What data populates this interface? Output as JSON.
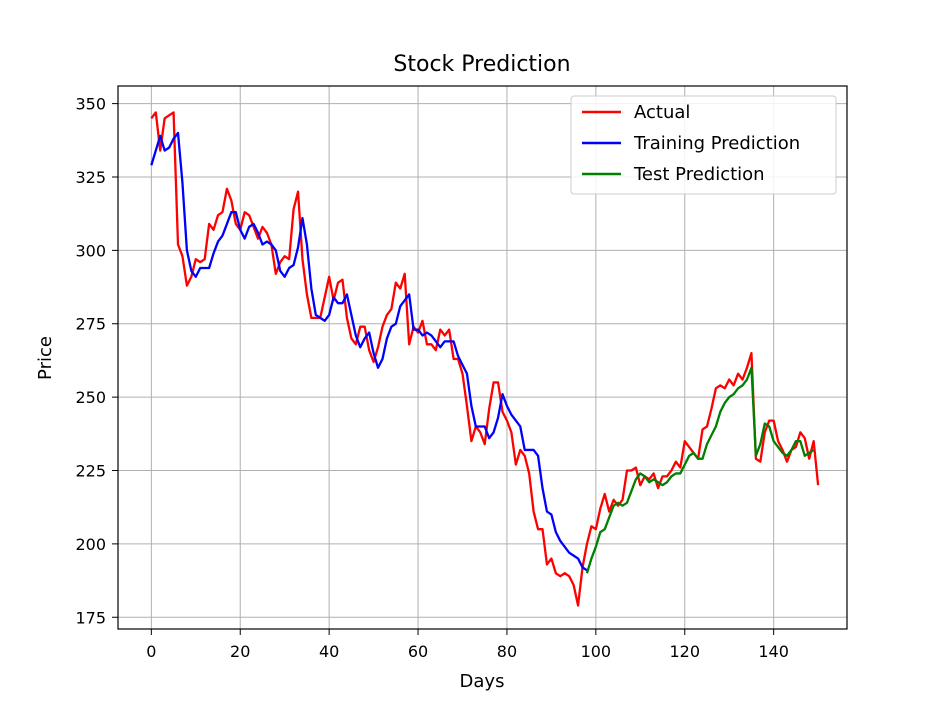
{
  "chart_data": {
    "type": "line",
    "title": "Stock Prediction",
    "xlabel": "Days",
    "ylabel": "Price",
    "xlim": [
      -7.5,
      156.5
    ],
    "ylim": [
      171,
      356
    ],
    "xticks": [
      0,
      20,
      40,
      60,
      80,
      100,
      120,
      140
    ],
    "yticks": [
      175,
      200,
      225,
      250,
      275,
      300,
      325,
      350
    ],
    "grid": true,
    "legend_position": "top-right",
    "series": [
      {
        "name": "Actual",
        "color": "#ff0000",
        "x_start": 0,
        "values": [
          345,
          347,
          334,
          345,
          346,
          347,
          302,
          298,
          288,
          291,
          297,
          296,
          297,
          309,
          307,
          312,
          313,
          321,
          317,
          309,
          307,
          313,
          312,
          308,
          304,
          308,
          306,
          302,
          292,
          296,
          298,
          297,
          314,
          320,
          297,
          285,
          277,
          277,
          277,
          284,
          291,
          283,
          289,
          290,
          277,
          270,
          268,
          274,
          274,
          266,
          262,
          267,
          274,
          278,
          280,
          289,
          287,
          292,
          268,
          274,
          272,
          276,
          268,
          268,
          266,
          273,
          271,
          273,
          263,
          263,
          258,
          247,
          235,
          240,
          238,
          234,
          246,
          255,
          255,
          245,
          242,
          238,
          227,
          232,
          230,
          224,
          211,
          205,
          205,
          193,
          195,
          190,
          189,
          190,
          189,
          186,
          179,
          192,
          200,
          206,
          205,
          212,
          217,
          211,
          215,
          213,
          215,
          225,
          225,
          226,
          220,
          223,
          222,
          224,
          219,
          223,
          223,
          225,
          228,
          226,
          235,
          233,
          231,
          229,
          239,
          240,
          246,
          253,
          254,
          253,
          256,
          254,
          258,
          256,
          260,
          265,
          229,
          228,
          238,
          242,
          242,
          235,
          232,
          228,
          232,
          233,
          238,
          236,
          229,
          235,
          220
        ]
      },
      {
        "name": "Training Prediction",
        "color": "#0000ff",
        "x_start": 0,
        "values": [
          329,
          334,
          339,
          334,
          335,
          338,
          340,
          323,
          300,
          293,
          291,
          294,
          294,
          294,
          299,
          303,
          305,
          309,
          313,
          313,
          307,
          304,
          308,
          309,
          306,
          302,
          303,
          302,
          300,
          293,
          291,
          294,
          295,
          301,
          311,
          302,
          287,
          278,
          277,
          276,
          278,
          284,
          282,
          282,
          285,
          278,
          271,
          267,
          270,
          272,
          265,
          260,
          263,
          270,
          274,
          275,
          281,
          283,
          285,
          273,
          273,
          271,
          272,
          271,
          269,
          267,
          269,
          269,
          269,
          264,
          261,
          258,
          247,
          240,
          240,
          240,
          236,
          238,
          243,
          251,
          247,
          244,
          242,
          240,
          232,
          232,
          232,
          230,
          219,
          211,
          210,
          204,
          201,
          199,
          197,
          196,
          195,
          192,
          191
        ]
      },
      {
        "name": "Test Prediction",
        "color": "#007f00",
        "x_start": 98,
        "values": [
          190,
          195,
          199,
          204,
          205,
          209,
          213,
          214,
          213,
          214,
          218,
          222,
          224,
          223,
          221,
          222,
          221,
          220,
          221,
          223,
          224,
          224,
          227,
          230,
          231,
          229,
          229,
          234,
          237,
          240,
          245,
          248,
          250,
          251,
          253,
          254,
          256,
          260,
          230,
          234,
          241,
          240,
          235,
          233,
          231,
          230,
          232,
          235,
          235,
          230,
          231,
          232
        ]
      }
    ]
  }
}
